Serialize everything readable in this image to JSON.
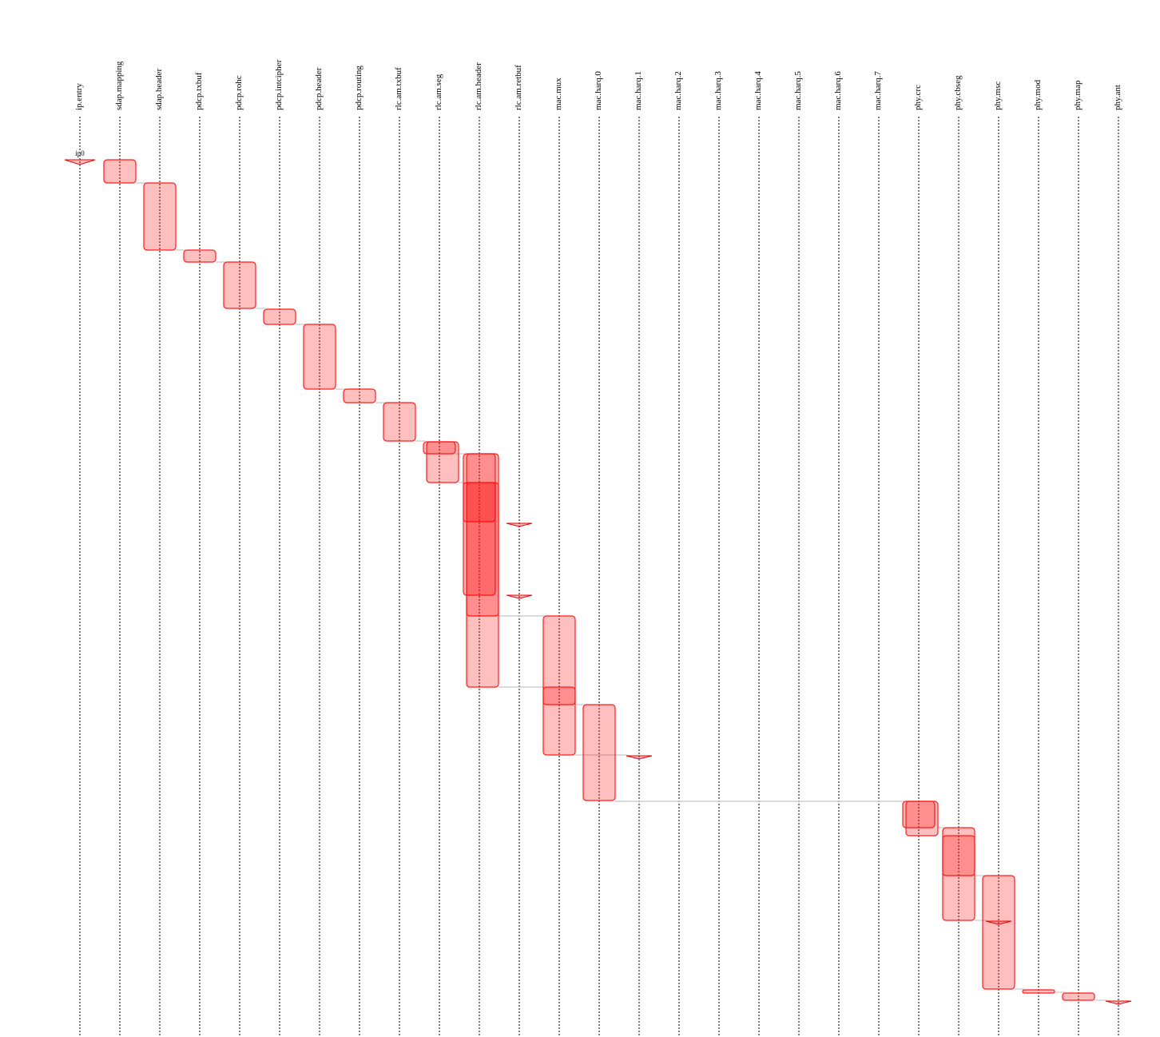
{
  "lanes": [
    "ip.entry",
    "sdap.mapping",
    "sdap.header",
    "pdcp.txbuf",
    "pdcp.rohc",
    "pdcp.intcipher",
    "pdcp.header",
    "pdcp.routing",
    "rlc.am.txbuf",
    "rlc.am.seg",
    "rlc.am.header",
    "rlc.am.retbuf",
    "mac.mux",
    "mac.harq.0",
    "mac.harq.1",
    "mac.harq.2",
    "mac.harq.3",
    "mac.harq.4",
    "mac.harq.5",
    "mac.harq.6",
    "mac.harq.7",
    "phy.crc",
    "phy.cbseg",
    "phy.msc",
    "phy.mod",
    "phy.map",
    "phy.ant"
  ],
  "entry_marker_label": "ip0",
  "colors": {
    "span_fill": "rgba(255,0,0,0.25)",
    "span_stroke": "#ff1a1a",
    "lane_line": "#000000",
    "link_line": "#cfcfcf"
  }
}
